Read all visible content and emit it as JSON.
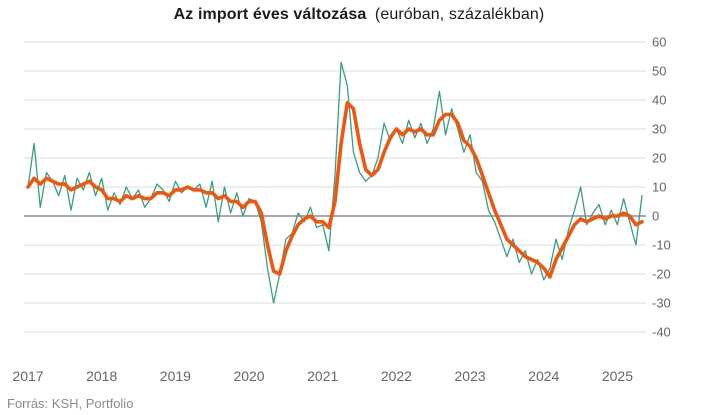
{
  "title": {
    "bold": "Az import éves változása",
    "normal": "(euróban, százalékban)"
  },
  "source": "Forrás: KSH, Portfolio",
  "colors": {
    "monthly": "#35a083",
    "trend": "#f1560e",
    "grid": "#dcdcdc",
    "zero_line": "#8c8c8c",
    "axis_text": "#666666",
    "title_text": "#1b1b1b"
  },
  "chart_data": {
    "type": "line",
    "start": "2017-01",
    "frequency": "monthly",
    "ylim": [
      -40,
      60
    ],
    "ytick_step": 10,
    "ytick_labels": [
      "60",
      "50",
      "40",
      "30",
      "20",
      "10",
      "0",
      "-10",
      "-20",
      "-30",
      "-40"
    ],
    "x_tick_years": [
      "2017",
      "2018",
      "2019",
      "2020",
      "2021",
      "2022",
      "2023",
      "2024",
      "2025"
    ],
    "grid": true,
    "legend": "none",
    "series": [
      {
        "name": "monthly",
        "color_key": "monthly",
        "width": 1.3,
        "values": [
          10,
          25,
          3,
          15,
          12,
          7,
          14,
          2,
          13,
          9,
          15,
          7,
          13,
          2,
          8,
          4,
          10,
          6,
          9,
          3,
          6,
          11,
          9,
          5,
          12,
          8,
          10,
          9,
          11,
          3,
          12,
          -2,
          10,
          1,
          8,
          0,
          6,
          5,
          -2,
          -18,
          -30,
          -20,
          -8,
          -6,
          1,
          -2,
          3,
          -4,
          -3,
          -12,
          14,
          53,
          45,
          22,
          15,
          12,
          14,
          20,
          32,
          26,
          30,
          25,
          33,
          27,
          32,
          25,
          30,
          43,
          28,
          37,
          30,
          22,
          28,
          15,
          12,
          2,
          -2,
          -8,
          -14,
          -8,
          -16,
          -12,
          -20,
          -15,
          -22,
          -18,
          -8,
          -15,
          -5,
          2,
          10,
          -3,
          1,
          4,
          -3,
          2,
          -3,
          6,
          -2,
          -10,
          7
        ]
      },
      {
        "name": "trend",
        "color_key": "trend",
        "width": 3.6,
        "values": [
          10,
          13,
          11,
          13,
          12,
          11,
          11,
          9,
          10,
          11,
          12,
          10,
          9,
          6,
          6,
          5,
          7,
          6,
          7,
          6,
          6,
          8,
          8,
          7,
          9,
          9,
          10,
          9,
          9,
          8,
          8,
          6,
          7,
          5,
          5,
          3,
          5,
          5,
          1,
          -10,
          -19,
          -20,
          -12,
          -7,
          -3,
          -1,
          0,
          -2,
          -2,
          -4,
          5,
          25,
          39,
          37,
          25,
          16,
          14,
          16,
          22,
          27,
          30,
          28,
          30,
          29,
          30,
          28,
          28,
          33,
          35,
          35,
          32,
          26,
          24,
          20,
          14,
          8,
          2,
          -3,
          -8,
          -10,
          -12,
          -14,
          -15,
          -16,
          -18,
          -21,
          -15,
          -11,
          -7,
          -3,
          -1,
          -2,
          -1,
          0,
          -1,
          0,
          0,
          1,
          0,
          -3,
          -2
        ]
      }
    ]
  }
}
